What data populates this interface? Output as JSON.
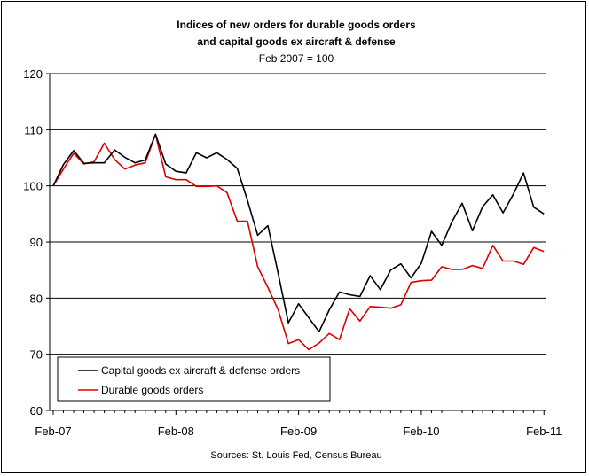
{
  "chart_data": {
    "type": "line",
    "title_line1": "Indices of new orders for durable goods orders",
    "title_line2": "and capital goods ex aircraft & defense",
    "subtitle": "Feb 2007 = 100",
    "source": "Sources: St. Louis Fed, Census Bureau",
    "ylim": [
      60,
      120
    ],
    "yticks": [
      60,
      70,
      80,
      90,
      100,
      110,
      120
    ],
    "xticks": [
      {
        "index": 0,
        "label": "Feb-07"
      },
      {
        "index": 12,
        "label": "Feb-08"
      },
      {
        "index": 24,
        "label": "Feb-09"
      },
      {
        "index": 36,
        "label": "Feb-10"
      },
      {
        "index": 48,
        "label": "Feb-11"
      }
    ],
    "grid": "horizontal",
    "legend_position": "bottom-left",
    "series": [
      {
        "name": "Capital goods ex aircraft & defense orders",
        "color": "#000000",
        "values": [
          100,
          103.8,
          106.3,
          104.0,
          104.1,
          104.1,
          106.4,
          105.1,
          104.1,
          104.6,
          109.2,
          103.9,
          102.6,
          102.3,
          105.9,
          105.0,
          105.9,
          104.7,
          103.1,
          97.4,
          91.2,
          92.9,
          84.4,
          75.6,
          79.0,
          76.5,
          74.0,
          77.9,
          81.1,
          80.6,
          80.3,
          84.0,
          81.5,
          85.0,
          86.1,
          83.6,
          86.2,
          91.9,
          89.4,
          93.6,
          96.9,
          92.0,
          96.3,
          98.4,
          95.2,
          98.5,
          102.3,
          96.2,
          95.0
        ]
      },
      {
        "name": "Durable goods orders",
        "color": "#dd0000",
        "values": [
          100,
          103.0,
          105.8,
          103.9,
          104.3,
          107.6,
          104.7,
          103.0,
          103.7,
          104.1,
          109.2,
          101.6,
          101.1,
          101.1,
          99.9,
          99.9,
          100.0,
          98.8,
          93.7,
          93.7,
          85.6,
          81.9,
          77.9,
          71.9,
          72.6,
          70.8,
          72.0,
          73.7,
          72.6,
          78.1,
          75.9,
          78.5,
          78.4,
          78.2,
          78.8,
          82.8,
          83.1,
          83.2,
          85.6,
          85.1,
          85.1,
          85.8,
          85.3,
          89.4,
          86.6,
          86.6,
          86.0,
          89.0,
          88.3
        ]
      }
    ]
  }
}
